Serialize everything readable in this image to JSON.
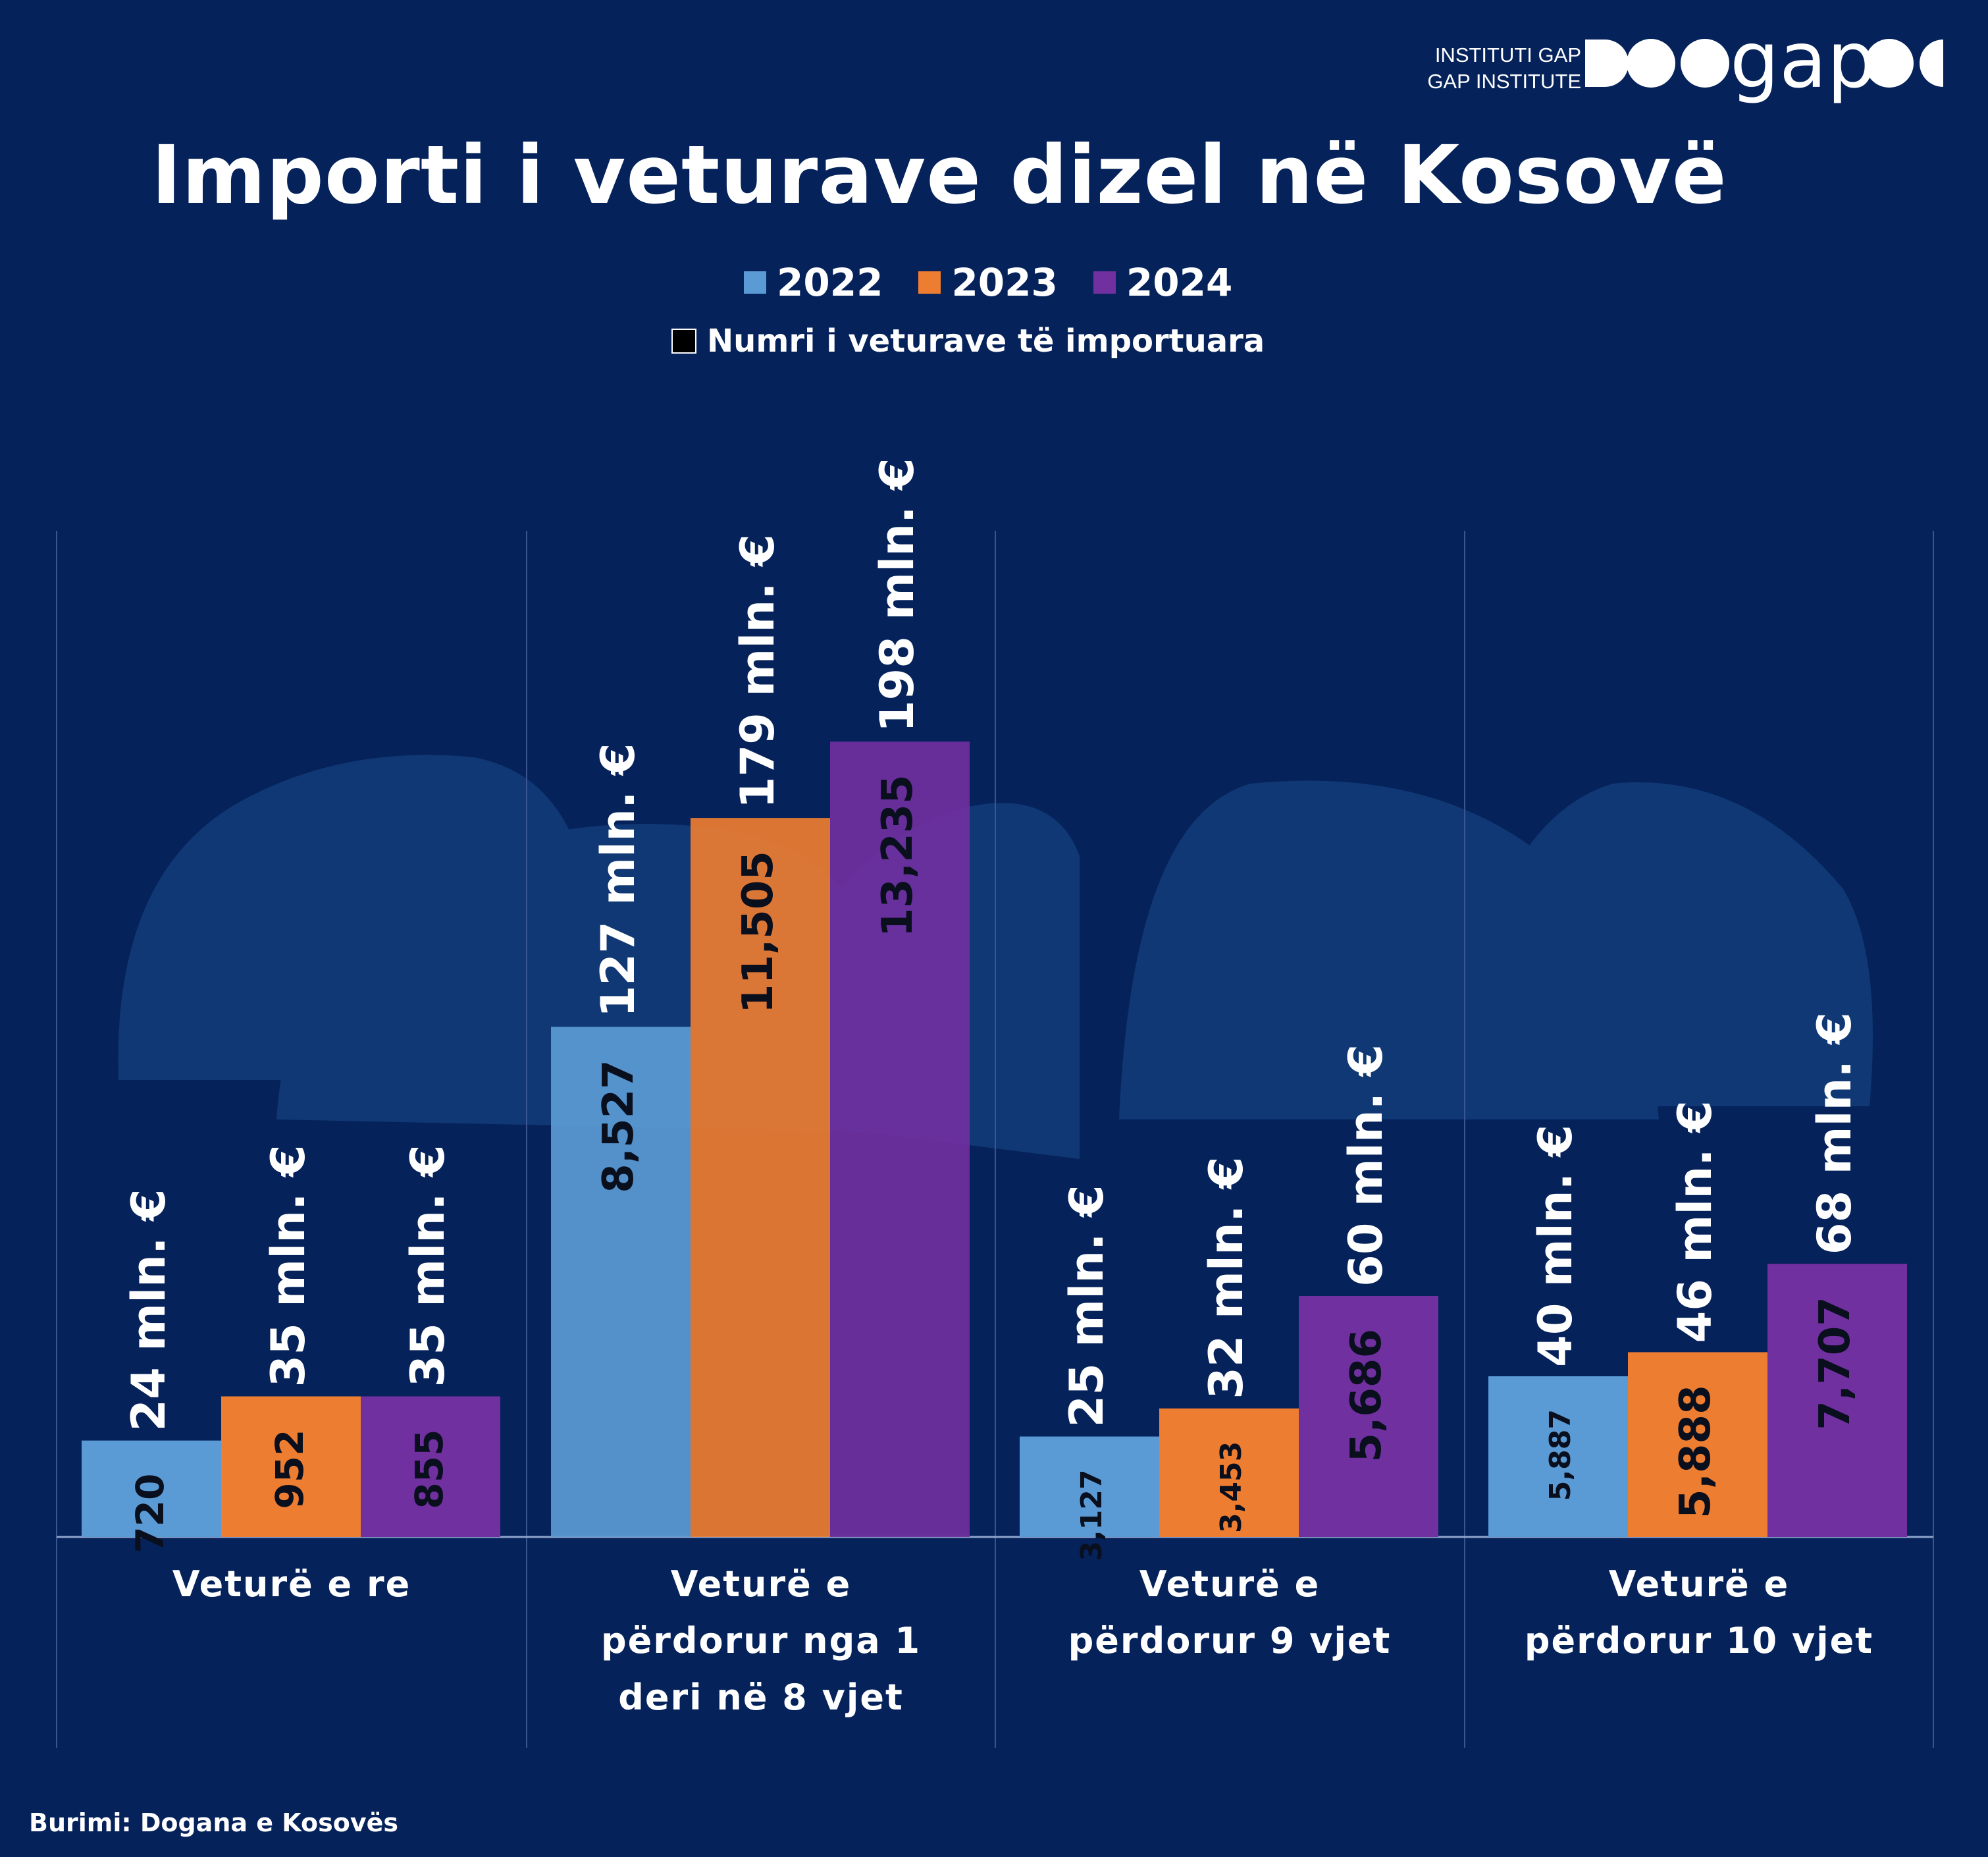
{
  "logo": {
    "line1": "INSTITUTI GAP",
    "line2": "GAP INSTITUTE",
    "word": "gap"
  },
  "legend": {
    "series_label_count": "Numri i veturave të importuara"
  },
  "source": "Burimi: Dogana e Kosovës",
  "colors": {
    "background": "#05225a",
    "2022": "#5b9bd5",
    "2023": "#ed7d31",
    "2024": "#7030a0",
    "grid": "#3a5590"
  },
  "chart_data": {
    "type": "bar",
    "title": "Importi i veturave dizel në Kosovë",
    "categories": [
      "Veturë e re",
      "Veturë e përdorur nga 1 deri në 8 vjet",
      "Veturë e përdorur 9 vjet",
      "Veturë e përdorur 10 vjet"
    ],
    "category_lines": [
      [
        "Veturë e re"
      ],
      [
        "Veturë e",
        "përdorur nga 1",
        "deri në 8 vjet"
      ],
      [
        "Veturë e",
        "përdorur 9 vjet"
      ],
      [
        "Veturë e",
        "përdorur 10 vjet"
      ]
    ],
    "series": [
      {
        "name": "2022",
        "values": [
          24,
          127,
          25,
          40
        ],
        "value_labels": [
          "24 mln. €",
          "127 mln. €",
          "25 mln. €",
          "40 mln. €"
        ],
        "counts": [
          "720",
          "8,527",
          "3,127",
          "5,887"
        ]
      },
      {
        "name": "2023",
        "values": [
          35,
          179,
          32,
          46
        ],
        "value_labels": [
          "35 mln. €",
          "179 mln. €",
          "32 mln. €",
          "46 mln. €"
        ],
        "counts": [
          "952",
          "11,505",
          "3,453",
          "5,888"
        ]
      },
      {
        "name": "2024",
        "values": [
          35,
          198,
          60,
          68
        ],
        "value_labels": [
          "35 mln. €",
          "198 mln. €",
          "60 mln. €",
          "68 mln. €"
        ],
        "counts": [
          "855",
          "13,235",
          "5,686",
          "7,707"
        ]
      }
    ],
    "ylim": [
      0,
      250
    ],
    "legend_position": "top-center",
    "grid": false
  }
}
